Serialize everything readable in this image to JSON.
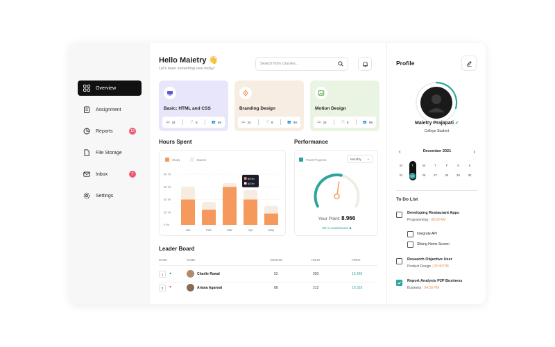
{
  "sidebar": {
    "items": [
      {
        "label": "Overview",
        "icon": "grid-icon",
        "badge": ""
      },
      {
        "label": "Assignment",
        "icon": "clipboard-icon",
        "badge": ""
      },
      {
        "label": "Reports",
        "icon": "pie-icon",
        "badge": "12"
      },
      {
        "label": "File Storage",
        "icon": "file-icon",
        "badge": ""
      },
      {
        "label": "Inbox",
        "icon": "mail-icon",
        "badge": "7"
      },
      {
        "label": "Settings",
        "icon": "gear-icon",
        "badge": ""
      }
    ]
  },
  "header": {
    "greeting": "Hello Maietry",
    "wave": "👋",
    "subtitle": "Let's learn something new today!",
    "search_placeholder": "Search from courses..."
  },
  "courses": [
    {
      "title": "Basic: HTML and CSS",
      "lessons": "24",
      "assignments": "8",
      "students": "99",
      "bg": "#e7e6fa",
      "accent": "#5b5bd6"
    },
    {
      "title": "Branding Design",
      "lessons": "24",
      "assignments": "8",
      "students": "99",
      "bg": "#f8ede2",
      "accent": "#f08a4b"
    },
    {
      "title": "Motion Design",
      "lessons": "24",
      "assignments": "8",
      "students": "99",
      "bg": "#eaf4e2",
      "accent": "#5aa84f"
    }
  ],
  "hours": {
    "title": "Hours Spent",
    "legend_study": "Study",
    "legend_exams": "Exams",
    "tooltip_study": "55 Hr",
    "tooltip_exams": "45 Hr"
  },
  "chart_data": {
    "type": "bar",
    "categories": [
      "Jan",
      "Feb",
      "Mar",
      "Apr",
      "May"
    ],
    "y_ticks": [
      "0 Hr",
      "20 Hr",
      "40 Hr",
      "60 Hr",
      "80 Hr"
    ],
    "ylim": [
      0,
      80
    ],
    "series": [
      {
        "name": "Study",
        "values": [
          40,
          24,
          60,
          40,
          18
        ],
        "color": "#f59a5c"
      },
      {
        "name": "Exams",
        "values": [
          20,
          12,
          6,
          15,
          12
        ],
        "color": "#f6ece0"
      }
    ],
    "stacked": true
  },
  "performance": {
    "title": "Performance",
    "legend": "Point Progress",
    "dropdown": "Monthly",
    "point_label": "Your Point:",
    "point_value": "8.966",
    "rank_text": "5th in Leaderboard",
    "progress": 0.55
  },
  "leaderboard": {
    "title": "Leader Board",
    "headers": [
      "RANK",
      "NAME",
      "COURSE",
      "HOUR",
      "POINT"
    ],
    "rows": [
      {
        "rank": "1",
        "trend": "up",
        "name": "Charlie Rawal",
        "course": "53",
        "hour": "250",
        "point": "13,450"
      },
      {
        "rank": "2",
        "trend": "down",
        "name": "Ariana Agarwal",
        "course": "88",
        "hour": "212",
        "point": "10,333"
      }
    ]
  },
  "profile": {
    "title": "Profile",
    "name": "Maietry Prajapati",
    "role": "College Student"
  },
  "calendar": {
    "month": "December 2021",
    "weekdays": [
      "M",
      "T",
      "W",
      "T",
      "F",
      "S",
      "S"
    ],
    "days": [
      "24",
      "25",
      "26",
      "27",
      "28",
      "29",
      "30"
    ],
    "selected_index": 1
  },
  "todo": {
    "title": "To Do List",
    "items": [
      {
        "title": "Developing Restaurant Apps",
        "category": "Programming",
        "time": "08:00 AM",
        "checked": false
      },
      {
        "title": "Integrate API",
        "category": "",
        "time": "",
        "checked": false
      },
      {
        "title": "Slicing Home Screen",
        "category": "",
        "time": "",
        "checked": false
      },
      {
        "title": "Research Objective User",
        "category": "Product Design",
        "time": "02:40 PM",
        "checked": false
      },
      {
        "title": "Report Analysis P2P Business",
        "category": "Business",
        "time": "04:50 PM",
        "checked": true
      }
    ]
  }
}
